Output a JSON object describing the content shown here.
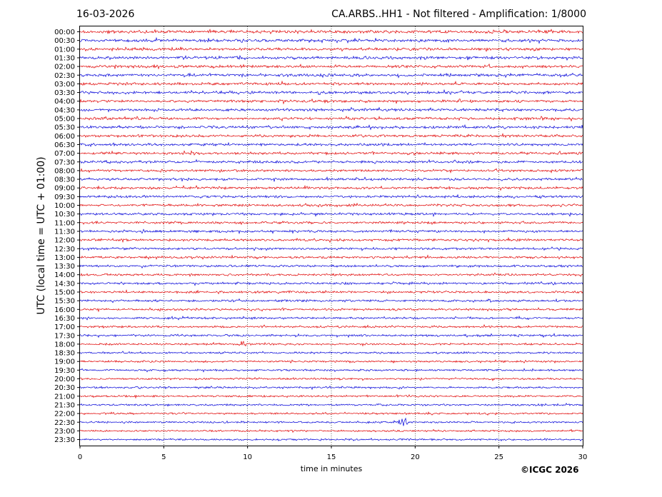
{
  "header": {
    "date": "16-03-2026",
    "title": "CA.ARBS..HH1 - Not filtered - Amplification: 1/8000"
  },
  "footer": {
    "credit": "©ICGC 2026"
  },
  "chart_data": {
    "type": "line",
    "title": "CA.ARBS..HH1 - Not filtered - Amplification: 1/8000",
    "xlabel": "time in minutes",
    "ylabel": "UTC (local time = UTC + 01:00)",
    "xlim": [
      0,
      30
    ],
    "x_ticks": [
      0,
      5,
      10,
      15,
      20,
      25,
      30
    ],
    "x_grid": "dotted vertical lines every 5 minutes",
    "rows": [
      "00:00",
      "00:30",
      "01:00",
      "01:30",
      "02:00",
      "02:30",
      "03:00",
      "03:30",
      "04:00",
      "04:30",
      "05:00",
      "05:30",
      "06:00",
      "06:30",
      "07:00",
      "07:30",
      "08:00",
      "08:30",
      "09:00",
      "09:30",
      "10:00",
      "10:30",
      "11:00",
      "11:30",
      "12:00",
      "12:30",
      "13:00",
      "13:30",
      "14:00",
      "14:30",
      "15:00",
      "15:30",
      "16:00",
      "16:30",
      "17:00",
      "17:30",
      "18:00",
      "18:30",
      "19:00",
      "19:30",
      "20:00",
      "20:30",
      "21:00",
      "21:30",
      "22:00",
      "22:30",
      "23:00",
      "23:30"
    ],
    "trace_colors": [
      "#e00000",
      "#0000d8"
    ],
    "events": [
      {
        "row": "18:00",
        "minute": 9.8,
        "relative_amplitude": 1.6
      },
      {
        "row": "22:30",
        "minute": 19.3,
        "relative_amplitude": 3.0
      }
    ]
  }
}
